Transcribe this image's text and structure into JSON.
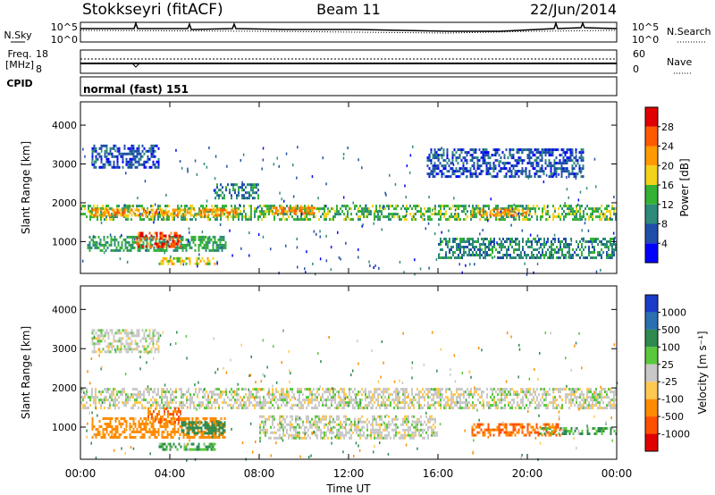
{
  "header": {
    "station": "Stokkseyri (fitACF)",
    "beam": "Beam 11",
    "date": "22/Jun/2014"
  },
  "noise_panel": {
    "left_label": "N.Sky",
    "right_label": "N.Search",
    "left_ticks": [
      "10^5",
      "10^0"
    ],
    "right_ticks": [
      "10^5",
      "10^0"
    ]
  },
  "freq_panel": {
    "left_label_1": "Freq.",
    "left_label_2": "[MHz]",
    "left_ticks": [
      "18",
      "8"
    ],
    "right_label": "Nave",
    "right_ticks": [
      "60",
      "0"
    ]
  },
  "cpid": {
    "label": "CPID",
    "value": "normal (fast) 151"
  },
  "x_axis": {
    "label": "Time UT",
    "ticks": [
      "00:00",
      "04:00",
      "08:00",
      "12:00",
      "16:00",
      "20:00",
      "00:00"
    ]
  },
  "power_colorbar": {
    "label": "Power [dB]",
    "ticks": [
      "4",
      "8",
      "12",
      "16",
      "20",
      "24",
      "28"
    ],
    "colors": [
      "#0000ff",
      "#1f4fa8",
      "#2e8a7a",
      "#34b234",
      "#f2d21a",
      "#ff9a00",
      "#ff5a00",
      "#e00000"
    ]
  },
  "velocity_colorbar": {
    "label": "Velocity [m s⁻¹]",
    "ticks": [
      "1000",
      "500",
      "100",
      "25",
      "-25",
      "-100",
      "-500",
      "-1000"
    ],
    "colors": [
      "#1a3cc8",
      "#2a6fb0",
      "#2e8a4e",
      "#5ac83c",
      "#c8c8c8",
      "#ffc850",
      "#ff8c00",
      "#ff5000",
      "#e00000"
    ]
  },
  "chart_data": [
    {
      "type": "heatmap",
      "title": "Power",
      "ylabel": "Slant Range [km]",
      "ylim": [
        180,
        4600
      ],
      "yticks": [
        1000,
        2000,
        3000,
        4000
      ],
      "xlim": [
        0,
        24
      ],
      "xlabel": "Time UT",
      "bands": [
        {
          "t0": 0.0,
          "t1": 24.0,
          "r0": 1550,
          "r1": 1950,
          "value": 14
        },
        {
          "t0": 0.5,
          "t1": 7.0,
          "r0": 1650,
          "r1": 1850,
          "value": 22
        },
        {
          "t0": 8.5,
          "t1": 10.5,
          "r0": 1700,
          "r1": 1900,
          "value": 24
        },
        {
          "t0": 17.5,
          "t1": 20.0,
          "r0": 1700,
          "r1": 1850,
          "value": 22
        },
        {
          "t0": 0.3,
          "t1": 6.5,
          "r0": 750,
          "r1": 1150,
          "value": 12
        },
        {
          "t0": 2.5,
          "t1": 4.5,
          "r0": 900,
          "r1": 1250,
          "value": 27
        },
        {
          "t0": 3.5,
          "t1": 6.0,
          "r0": 450,
          "r1": 600,
          "value": 18
        },
        {
          "t0": 0.5,
          "t1": 3.5,
          "r0": 2900,
          "r1": 3500,
          "value": 6
        },
        {
          "t0": 15.5,
          "t1": 22.5,
          "r0": 2700,
          "r1": 3400,
          "value": 6
        },
        {
          "t0": 16.0,
          "t1": 24.0,
          "r0": 600,
          "r1": 1100,
          "value": 10
        },
        {
          "t0": 6.0,
          "t1": 8.0,
          "r0": 2100,
          "r1": 2500,
          "value": 10
        }
      ]
    },
    {
      "type": "heatmap",
      "title": "Velocity",
      "ylabel": "Slant Range [km]",
      "ylim": [
        180,
        4600
      ],
      "yticks": [
        1000,
        2000,
        3000,
        4000
      ],
      "xlim": [
        0,
        24
      ],
      "xlabel": "Time UT",
      "bands": [
        {
          "t0": 0.0,
          "t1": 24.0,
          "r0": 1500,
          "r1": 2000,
          "value": 0
        },
        {
          "t0": 0.5,
          "t1": 6.5,
          "r0": 750,
          "r1": 1250,
          "value": -200
        },
        {
          "t0": 3.0,
          "t1": 4.5,
          "r0": 1100,
          "r1": 1500,
          "value": -300
        },
        {
          "t0": 4.5,
          "t1": 6.5,
          "r0": 850,
          "r1": 1150,
          "value": 150
        },
        {
          "t0": 3.5,
          "t1": 6.0,
          "r0": 450,
          "r1": 600,
          "value": 60
        },
        {
          "t0": 8.0,
          "t1": 16.0,
          "r0": 700,
          "r1": 1300,
          "value": 0
        },
        {
          "t0": 20.5,
          "t1": 24.0,
          "r0": 800,
          "r1": 1000,
          "value": 60
        },
        {
          "t0": 17.5,
          "t1": 21.5,
          "r0": 800,
          "r1": 1100,
          "value": -300
        },
        {
          "t0": 0.5,
          "t1": 3.5,
          "r0": 2900,
          "r1": 3500,
          "value": 0
        }
      ]
    }
  ]
}
